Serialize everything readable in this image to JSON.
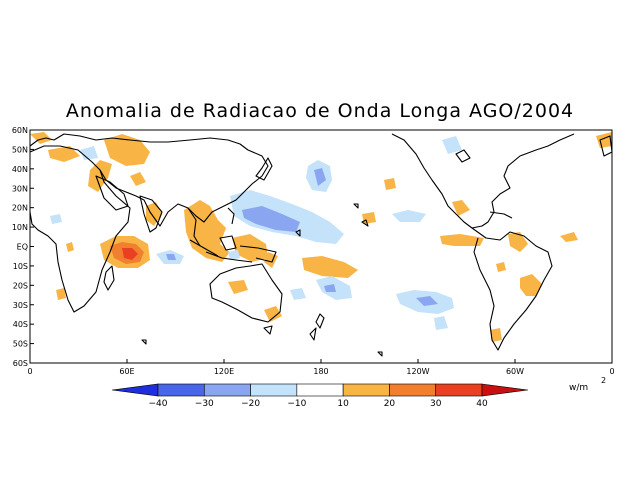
{
  "title": "Anomalia de Radiacao de Onda Longa AGO/2004",
  "map": {
    "lon_range": [
      0,
      360
    ],
    "lat_range": [
      -60,
      60
    ],
    "lat_labels": [
      "60N",
      "50N",
      "40N",
      "30N",
      "20N",
      "10N",
      "EQ",
      "10S",
      "20S",
      "30S",
      "40S",
      "50S",
      "60S"
    ],
    "lon_labels": [
      {
        "lon": 0,
        "label": "0"
      },
      {
        "lon": 60,
        "label": "60E"
      },
      {
        "lon": 120,
        "label": "120E"
      },
      {
        "lon": 180,
        "label": "180"
      },
      {
        "lon": 240,
        "label": "120W"
      },
      {
        "lon": 300,
        "label": "60W"
      },
      {
        "lon": 360,
        "label": "0"
      }
    ]
  },
  "colorbar": {
    "levels": [
      "-40",
      "-30",
      "-20",
      "-10",
      "10",
      "20",
      "30",
      "40"
    ],
    "colors": [
      "#1e2edc",
      "#4a66e8",
      "#8aa6f0",
      "#c4e2fa",
      "#ffffff",
      "#f8b444",
      "#f08030",
      "#e84020",
      "#c81010"
    ],
    "units": "w/m",
    "units_exp": "2"
  }
}
